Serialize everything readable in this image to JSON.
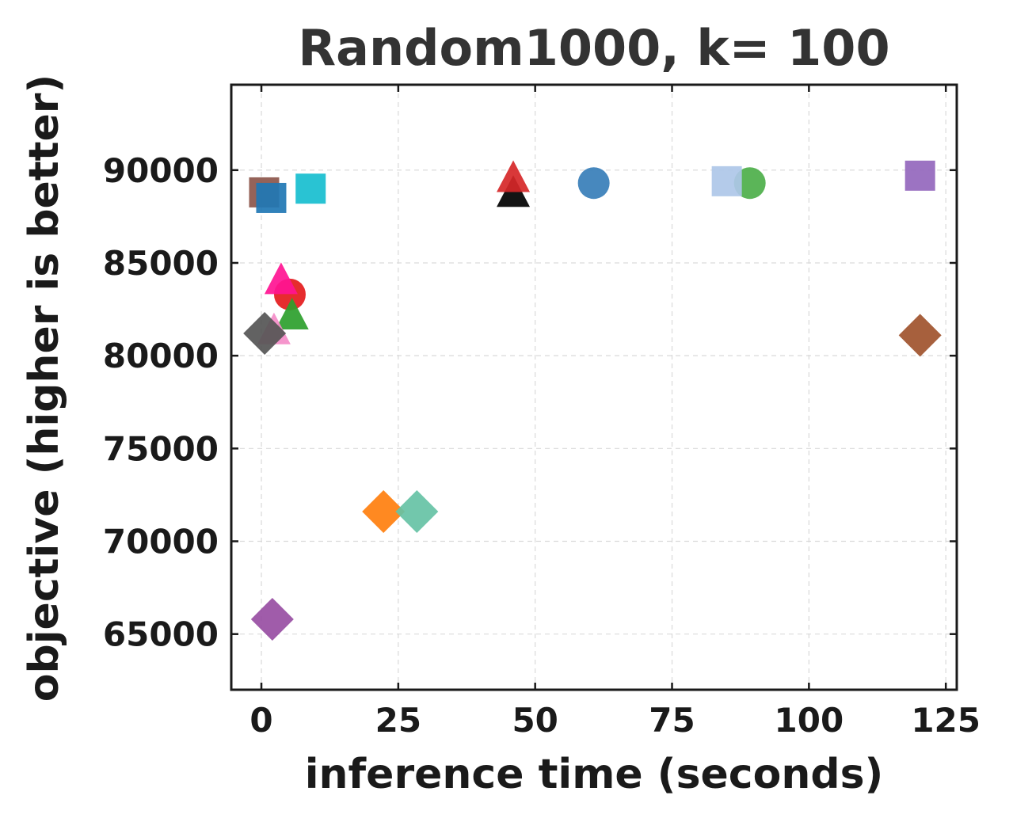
{
  "chart_data": {
    "type": "scatter",
    "title": "Random1000, k= 100",
    "xlabel": "inference time (seconds)",
    "ylabel": "objective (higher is better)",
    "xlim": [
      -5.5,
      127
    ],
    "ylim": [
      62000,
      94600
    ],
    "xticks": [
      0,
      25,
      50,
      75,
      100,
      125
    ],
    "yticks": [
      65000,
      70000,
      75000,
      80000,
      85000,
      90000
    ],
    "xtick_labels": [
      "0",
      "25",
      "50",
      "75",
      "100",
      "125"
    ],
    "ytick_labels": [
      "65000",
      "70000",
      "75000",
      "80000",
      "85000",
      "90000"
    ],
    "grid": true,
    "legend": "none",
    "points": [
      {
        "x": 0.5,
        "y": 88800,
        "marker": "square",
        "color": "#8c564b"
      },
      {
        "x": 1.8,
        "y": 88500,
        "marker": "square",
        "color": "#1f77b4"
      },
      {
        "x": 9.0,
        "y": 89000,
        "marker": "square",
        "color": "#17becf"
      },
      {
        "x": 46.0,
        "y": 88700,
        "marker": "triangle",
        "color": "#000000"
      },
      {
        "x": 46.0,
        "y": 89500,
        "marker": "triangle",
        "color": "#d62728"
      },
      {
        "x": 60.7,
        "y": 89300,
        "marker": "circle",
        "color": "#377eb8"
      },
      {
        "x": 89.2,
        "y": 89300,
        "marker": "circle",
        "color": "#4daf4a"
      },
      {
        "x": 85.0,
        "y": 89400,
        "marker": "square",
        "color": "#aec7e8"
      },
      {
        "x": 120.3,
        "y": 89700,
        "marker": "square",
        "color": "#9467bd"
      },
      {
        "x": 5.2,
        "y": 83300,
        "marker": "circle",
        "color": "#e41a1c"
      },
      {
        "x": 3.6,
        "y": 84000,
        "marker": "triangle",
        "color": "#ff1493"
      },
      {
        "x": 5.6,
        "y": 82100,
        "marker": "triangle",
        "color": "#2ca02c"
      },
      {
        "x": 2.3,
        "y": 81300,
        "marker": "triangle",
        "color": "#f48cc8"
      },
      {
        "x": 0.6,
        "y": 81200,
        "marker": "diamond",
        "color": "#555555"
      },
      {
        "x": 120.3,
        "y": 81100,
        "marker": "diamond",
        "color": "#a0522d"
      },
      {
        "x": 22.3,
        "y": 71600,
        "marker": "diamond",
        "color": "#ff7f0e"
      },
      {
        "x": 28.4,
        "y": 71600,
        "marker": "diamond",
        "color": "#66c2a5"
      },
      {
        "x": 2.0,
        "y": 65800,
        "marker": "diamond",
        "color": "#984ea3"
      }
    ]
  }
}
